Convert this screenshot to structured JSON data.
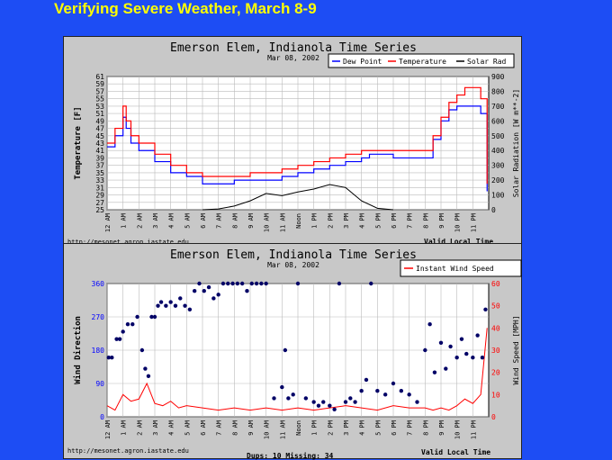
{
  "slide": {
    "title": "Verifying Severe Weather, March 8-9"
  },
  "hours": [
    "12 AM",
    "1 AM",
    "2 AM",
    "3 AM",
    "4 AM",
    "5 AM",
    "6 AM",
    "7 AM",
    "8 AM",
    "9 AM",
    "10 AM",
    "11 AM",
    "Noon",
    "1 PM",
    "2 PM",
    "3 PM",
    "4 PM",
    "5 PM",
    "6 PM",
    "7 PM",
    "8 PM",
    "9 PM",
    "10 PM",
    "11 PM"
  ],
  "colors": {
    "dew": "#0000ff",
    "temp": "#ff0000",
    "solar": "#000000",
    "wind_dir": "#000066",
    "wind_speed": "#ff0000"
  },
  "chart_data": [
    {
      "type": "line",
      "title": "Emerson Elem, Indianola Time Series",
      "subtitle": "Mar 08, 2002",
      "ylabel": "Temperature [F]",
      "y2label": "Solar Radiation [W m**-2]",
      "xlabel": "Valid Local Time",
      "source": "http://mesonet.agron.iastate.edu",
      "ylim": [
        25,
        61
      ],
      "y_ticks": [
        25,
        27,
        29,
        31,
        33,
        35,
        37,
        39,
        41,
        43,
        45,
        47,
        49,
        51,
        53,
        55,
        57,
        59,
        61
      ],
      "y2lim": [
        0,
        900
      ],
      "y2_ticks": [
        0,
        100,
        200,
        300,
        400,
        500,
        600,
        700,
        800,
        900
      ],
      "legend": [
        "Dew Point",
        "Temperature",
        "Solar Rad"
      ],
      "x_hours": [
        0,
        0.5,
        1,
        1.2,
        1.5,
        2,
        3,
        4,
        5,
        6,
        7,
        8,
        9,
        10,
        11,
        12,
        13,
        14,
        15,
        16,
        16.5,
        17,
        18,
        19,
        20,
        20.5,
        21,
        21.5,
        22,
        22.5,
        23,
        23.5,
        23.9
      ],
      "series": [
        {
          "name": "Dew Point",
          "values": [
            42,
            45,
            50,
            47,
            43,
            41,
            38,
            35,
            34,
            32,
            32,
            33,
            33,
            33,
            34,
            35,
            36,
            37,
            38,
            39,
            40,
            40,
            39,
            39,
            39,
            44,
            49,
            52,
            53,
            53,
            53,
            51,
            30
          ]
        },
        {
          "name": "Temperature",
          "values": [
            43,
            47,
            53,
            49,
            45,
            43,
            40,
            37,
            35,
            34,
            34,
            34,
            35,
            35,
            36,
            37,
            38,
            39,
            40,
            41,
            41,
            41,
            41,
            41,
            41,
            45,
            50,
            54,
            56,
            58,
            58,
            55,
            32
          ]
        },
        {
          "name": "Solar Rad",
          "x": [
            6,
            7,
            8,
            9,
            10,
            11,
            12,
            13,
            14,
            15,
            16,
            17,
            18
          ],
          "values": [
            0,
            5,
            25,
            60,
            110,
            95,
            120,
            140,
            170,
            150,
            60,
            10,
            0
          ]
        }
      ]
    },
    {
      "type": "scatter",
      "title": "Emerson Elem, Indianola Time Series",
      "subtitle": "Mar 08, 2002",
      "ylabel": "Wind Direction",
      "y2label": "Wind Speed [MPH]",
      "xlabel": "Valid Local Time",
      "source": "http://mesonet.agron.iastate.edu",
      "footer": "Dups: 10 Missing: 34",
      "ylim": [
        0,
        360
      ],
      "y_ticks": [
        0,
        90,
        180,
        270,
        360
      ],
      "y2lim": [
        0,
        60
      ],
      "y2_ticks": [
        0,
        10,
        20,
        30,
        40,
        50,
        60
      ],
      "legend": [
        "Instant Wind Speed"
      ],
      "series": [
        {
          "name": "Wind Direction",
          "x": [
            0.1,
            0.3,
            0.6,
            0.8,
            1.0,
            1.3,
            1.6,
            1.9,
            2.2,
            2.4,
            2.6,
            2.8,
            3.0,
            3.2,
            3.4,
            3.7,
            4.0,
            4.3,
            4.6,
            4.9,
            5.2,
            5.5,
            5.8,
            6.1,
            6.4,
            6.7,
            7.0,
            7.3,
            7.6,
            7.9,
            8.2,
            8.5,
            8.8,
            9.1,
            9.4,
            9.7,
            10.0,
            10.5,
            11.0,
            11.2,
            11.4,
            11.7,
            12.0,
            12.5,
            13.0,
            13.3,
            13.6,
            14.0,
            14.3,
            14.6,
            15.0,
            15.3,
            15.6,
            16.0,
            16.3,
            16.6,
            17.0,
            17.5,
            18.0,
            18.5,
            19.0,
            19.5,
            20.0,
            20.3,
            20.6,
            21.0,
            21.3,
            21.6,
            22.0,
            22.3,
            22.6,
            23.0,
            23.3,
            23.6,
            23.8
          ],
          "values": [
            160,
            160,
            210,
            210,
            230,
            250,
            250,
            270,
            180,
            130,
            110,
            270,
            270,
            300,
            310,
            300,
            310,
            300,
            320,
            300,
            290,
            340,
            360,
            340,
            350,
            320,
            330,
            360,
            360,
            360,
            360,
            360,
            340,
            360,
            360,
            360,
            360,
            50,
            80,
            180,
            50,
            60,
            360,
            50,
            40,
            30,
            40,
            30,
            20,
            360,
            40,
            50,
            40,
            70,
            100,
            360,
            70,
            60,
            90,
            70,
            60,
            40,
            180,
            250,
            120,
            200,
            130,
            190,
            160,
            210,
            170,
            160,
            220,
            160,
            290
          ]
        },
        {
          "name": "Instant Wind Speed",
          "x": [
            0,
            0.5,
            1,
            1.5,
            2,
            2.5,
            3,
            3.5,
            4,
            4.5,
            5,
            6,
            7,
            8,
            9,
            10,
            11,
            12,
            13,
            14,
            15,
            16,
            17,
            18,
            19,
            20,
            20.5,
            21,
            21.5,
            22,
            22.5,
            23,
            23.5,
            23.9
          ],
          "values": [
            5,
            3,
            10,
            7,
            8,
            15,
            6,
            5,
            7,
            4,
            5,
            4,
            3,
            4,
            3,
            4,
            3,
            4,
            3,
            4,
            5,
            4,
            3,
            5,
            4,
            4,
            3,
            4,
            3,
            5,
            8,
            6,
            10,
            40
          ]
        }
      ]
    }
  ]
}
